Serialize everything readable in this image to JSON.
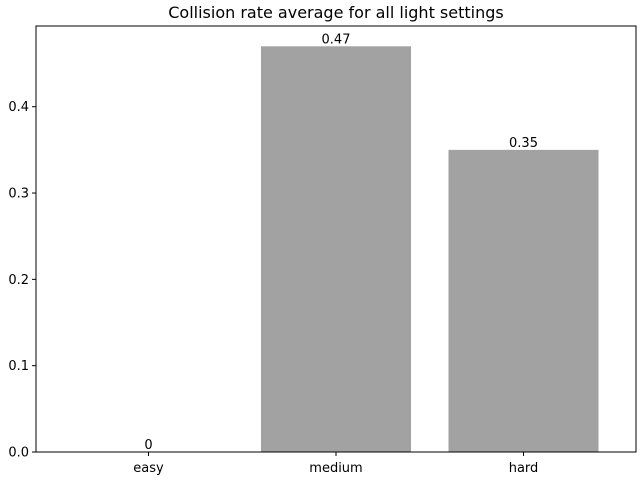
{
  "chart_data": {
    "type": "bar",
    "title": "Collision rate average for all light settings",
    "xlabel": "",
    "ylabel": "",
    "categories": [
      "easy",
      "medium",
      "hard"
    ],
    "values": [
      0,
      0.47,
      0.35
    ],
    "data_labels": [
      "0",
      "0.47",
      "0.35"
    ],
    "y_ticks": [
      0.0,
      0.1,
      0.2,
      0.3,
      0.4
    ],
    "y_tick_labels": [
      "0.0",
      "0.1",
      "0.2",
      "0.3",
      "0.4"
    ],
    "ylim": [
      0,
      0.4935
    ],
    "grid": false,
    "legend": "none",
    "bar_color": "#a2a2a2"
  }
}
